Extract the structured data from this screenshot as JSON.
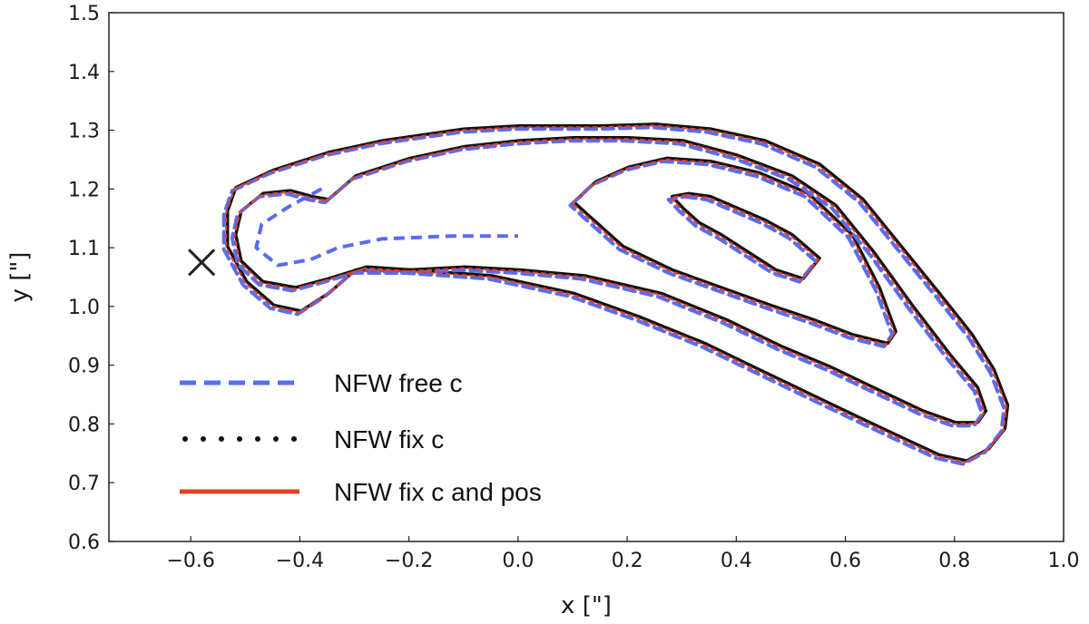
{
  "chart_data": {
    "type": "line",
    "title": "",
    "xlabel": "x [\"]",
    "ylabel": "y [\"]",
    "xlim": [
      -0.75,
      1.0
    ],
    "ylim": [
      0.6,
      1.5
    ],
    "xticks": [
      {
        "value": -0.6,
        "label": "−0.6"
      },
      {
        "value": -0.4,
        "label": "−0.4"
      },
      {
        "value": -0.2,
        "label": "−0.2"
      },
      {
        "value": 0.0,
        "label": "0.0"
      },
      {
        "value": 0.2,
        "label": "0.2"
      },
      {
        "value": 0.4,
        "label": "0.4"
      },
      {
        "value": 0.6,
        "label": "0.6"
      },
      {
        "value": 0.8,
        "label": "0.8"
      },
      {
        "value": 1.0,
        "label": "1.0"
      }
    ],
    "yticks": [
      {
        "value": 0.6,
        "label": "0.6"
      },
      {
        "value": 0.7,
        "label": "0.7"
      },
      {
        "value": 0.8,
        "label": "0.8"
      },
      {
        "value": 0.9,
        "label": "0.9"
      },
      {
        "value": 1.0,
        "label": "1.0"
      },
      {
        "value": 1.1,
        "label": "1.1"
      },
      {
        "value": 1.2,
        "label": "1.2"
      },
      {
        "value": 1.3,
        "label": "1.3"
      },
      {
        "value": 1.4,
        "label": "1.4"
      },
      {
        "value": 1.5,
        "label": "1.5"
      }
    ],
    "grid": false,
    "legend_position": "lower-left",
    "marker": {
      "symbol": "x",
      "x": -0.58,
      "y": 1.075,
      "color": "#222222"
    },
    "series": [
      {
        "name": "NFW free c",
        "style": "dashed",
        "color": "#5a6cf0"
      },
      {
        "name": "NFW fix c",
        "style": "dotted",
        "color": "#111111"
      },
      {
        "name": "NFW fix c and pos",
        "style": "solid",
        "color": "#e0402a"
      }
    ],
    "contours": [
      {
        "level": "inner",
        "points": [
          [
            0.31,
            1.19
          ],
          [
            0.35,
            1.185
          ],
          [
            0.4,
            1.165
          ],
          [
            0.45,
            1.145
          ],
          [
            0.5,
            1.12
          ],
          [
            0.55,
            1.08
          ],
          [
            0.52,
            1.045
          ],
          [
            0.47,
            1.06
          ],
          [
            0.42,
            1.09
          ],
          [
            0.37,
            1.12
          ],
          [
            0.33,
            1.14
          ],
          [
            0.3,
            1.165
          ],
          [
            0.28,
            1.185
          ]
        ]
      },
      {
        "level": "middle",
        "points": [
          [
            0.1,
            1.175
          ],
          [
            0.14,
            1.21
          ],
          [
            0.2,
            1.235
          ],
          [
            0.27,
            1.25
          ],
          [
            0.35,
            1.245
          ],
          [
            0.44,
            1.225
          ],
          [
            0.53,
            1.19
          ],
          [
            0.61,
            1.12
          ],
          [
            0.66,
            1.03
          ],
          [
            0.69,
            0.955
          ],
          [
            0.675,
            0.935
          ],
          [
            0.61,
            0.95
          ],
          [
            0.54,
            0.975
          ],
          [
            0.46,
            1.0
          ],
          [
            0.37,
            1.03
          ],
          [
            0.28,
            1.06
          ],
          [
            0.19,
            1.1
          ],
          [
            0.13,
            1.15
          ]
        ]
      },
      {
        "level": "outer",
        "points": [
          [
            -0.35,
            1.18
          ],
          [
            -0.3,
            1.22
          ],
          [
            -0.2,
            1.25
          ],
          [
            -0.1,
            1.27
          ],
          [
            0.0,
            1.28
          ],
          [
            0.1,
            1.285
          ],
          [
            0.2,
            1.285
          ],
          [
            0.3,
            1.28
          ],
          [
            0.4,
            1.255
          ],
          [
            0.5,
            1.22
          ],
          [
            0.58,
            1.17
          ],
          [
            0.65,
            1.09
          ],
          [
            0.72,
            1.0
          ],
          [
            0.79,
            0.915
          ],
          [
            0.84,
            0.86
          ],
          [
            0.855,
            0.82
          ],
          [
            0.84,
            0.8
          ],
          [
            0.8,
            0.8
          ],
          [
            0.74,
            0.82
          ],
          [
            0.66,
            0.855
          ],
          [
            0.57,
            0.895
          ],
          [
            0.48,
            0.93
          ],
          [
            0.38,
            0.975
          ],
          [
            0.26,
            1.02
          ],
          [
            0.12,
            1.05
          ],
          [
            0.0,
            1.06
          ],
          [
            -0.1,
            1.065
          ],
          [
            -0.2,
            1.06
          ],
          [
            -0.28,
            1.065
          ],
          [
            -0.35,
            1.045
          ],
          [
            -0.41,
            1.03
          ],
          [
            -0.47,
            1.04
          ],
          [
            -0.51,
            1.075
          ],
          [
            -0.52,
            1.12
          ],
          [
            -0.51,
            1.16
          ],
          [
            -0.47,
            1.19
          ],
          [
            -0.42,
            1.195
          ],
          [
            -0.38,
            1.185
          ]
        ]
      },
      {
        "level": "outermost",
        "points": [
          [
            -0.52,
            1.2
          ],
          [
            -0.45,
            1.23
          ],
          [
            -0.35,
            1.26
          ],
          [
            -0.25,
            1.28
          ],
          [
            -0.1,
            1.3
          ],
          [
            0.0,
            1.305
          ],
          [
            0.15,
            1.305
          ],
          [
            0.25,
            1.308
          ],
          [
            0.35,
            1.3
          ],
          [
            0.45,
            1.28
          ],
          [
            0.55,
            1.24
          ],
          [
            0.63,
            1.18
          ],
          [
            0.7,
            1.1
          ],
          [
            0.77,
            1.02
          ],
          [
            0.83,
            0.95
          ],
          [
            0.87,
            0.89
          ],
          [
            0.895,
            0.83
          ],
          [
            0.89,
            0.79
          ],
          [
            0.86,
            0.755
          ],
          [
            0.82,
            0.735
          ],
          [
            0.77,
            0.745
          ],
          [
            0.7,
            0.775
          ],
          [
            0.62,
            0.81
          ],
          [
            0.53,
            0.85
          ],
          [
            0.44,
            0.89
          ],
          [
            0.34,
            0.935
          ],
          [
            0.22,
            0.98
          ],
          [
            0.1,
            1.02
          ],
          [
            -0.05,
            1.05
          ],
          [
            -0.2,
            1.06
          ],
          [
            -0.3,
            1.06
          ],
          [
            -0.35,
            1.02
          ],
          [
            -0.4,
            0.99
          ],
          [
            -0.45,
            1.0
          ],
          [
            -0.5,
            1.04
          ],
          [
            -0.535,
            1.1
          ],
          [
            -0.535,
            1.16
          ]
        ]
      }
    ],
    "free_c_extra": [
      {
        "points": [
          [
            -0.36,
            1.2
          ],
          [
            -0.42,
            1.17
          ],
          [
            -0.47,
            1.14
          ],
          [
            -0.48,
            1.1
          ],
          [
            -0.44,
            1.07
          ],
          [
            -0.38,
            1.08
          ],
          [
            -0.33,
            1.1
          ],
          [
            -0.25,
            1.115
          ],
          [
            -0.12,
            1.12
          ],
          [
            0.0,
            1.12
          ]
        ]
      }
    ]
  }
}
